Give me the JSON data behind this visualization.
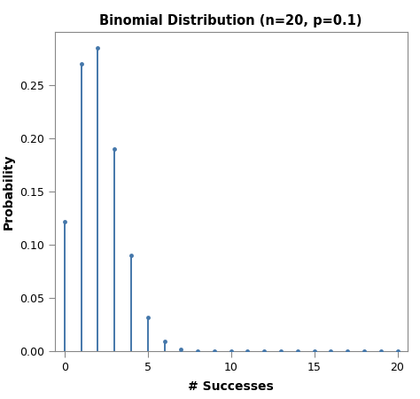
{
  "title": "Binomial Distribution (n=20, p=0.1)",
  "xlabel": "# Successes",
  "ylabel": "Probability",
  "x_values": [
    0,
    1,
    2,
    3,
    4,
    5,
    6,
    7,
    8,
    9,
    10,
    11,
    12,
    13,
    14,
    15,
    16,
    17,
    18,
    19,
    20
  ],
  "probabilities": [
    0.12157665459056928,
    0.2701703435345984,
    0.2851795736921094,
    0.19012104912807293,
    0.08978271430937305,
    0.031921588334133714,
    0.008867107871148255,
    0.0019718017491440567,
    0.00036222532150810436,
    5.514751869775041e-05,
    6.993461025115303e-06,
    7.417175766892177e-07,
    6.5659282127e-08,
    4.7913118e-09,
    2.8837e-10,
    1.3983e-11,
    5.26e-13,
    1.4e-14,
    2.4e-16,
    2.1e-18,
    7.4e-21
  ],
  "line_color": "#4477aa",
  "dot_color": "#4477aa",
  "background_color": "#ffffff",
  "plot_bg_color": "#ffffff",
  "ylim": [
    0,
    0.3
  ],
  "xlim": [
    -0.6,
    20.6
  ],
  "yticks": [
    0.0,
    0.05,
    0.1,
    0.15,
    0.2,
    0.25
  ],
  "xticks": [
    0,
    5,
    10,
    15,
    20
  ],
  "title_fontsize": 10.5,
  "label_fontsize": 10,
  "tick_fontsize": 9,
  "line_width": 1.4,
  "dot_size": 3.5,
  "spine_color": "#888888"
}
